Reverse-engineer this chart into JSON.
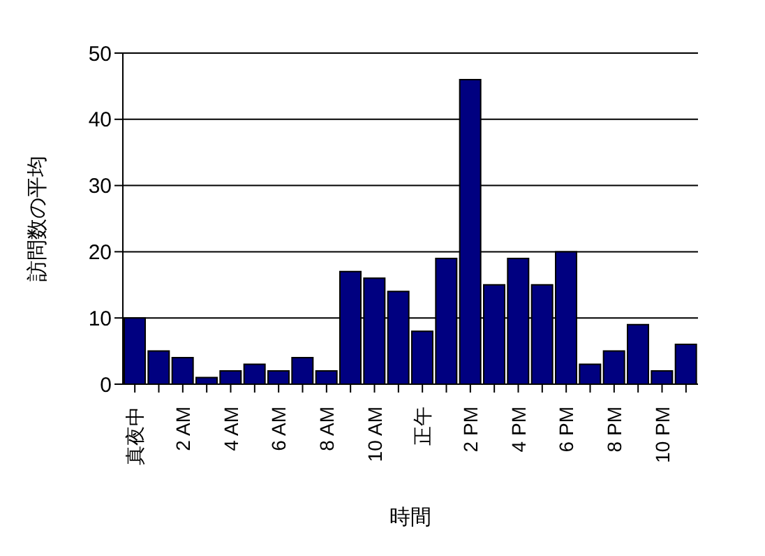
{
  "chart_data": {
    "type": "bar",
    "xlabel": "時間",
    "ylabel": "訪問数の平均",
    "categories": [
      "真夜中",
      null,
      "2 AM",
      null,
      "4 AM",
      null,
      "6 AM",
      null,
      "8 AM",
      null,
      "10 AM",
      null,
      "正午",
      null,
      "2 PM",
      null,
      "4 PM",
      null,
      "6 PM",
      null,
      "8 PM",
      null,
      "10 PM",
      null
    ],
    "values": [
      10,
      5,
      4,
      1,
      2,
      3,
      2,
      4,
      2,
      17,
      16,
      14,
      8,
      19,
      46,
      15,
      19,
      15,
      20,
      3,
      5,
      9,
      2,
      6
    ],
    "color": "#000080",
    "ylim": [
      0,
      50
    ],
    "yticks": [
      0,
      10,
      20,
      30,
      40,
      50
    ],
    "grid": "y"
  }
}
